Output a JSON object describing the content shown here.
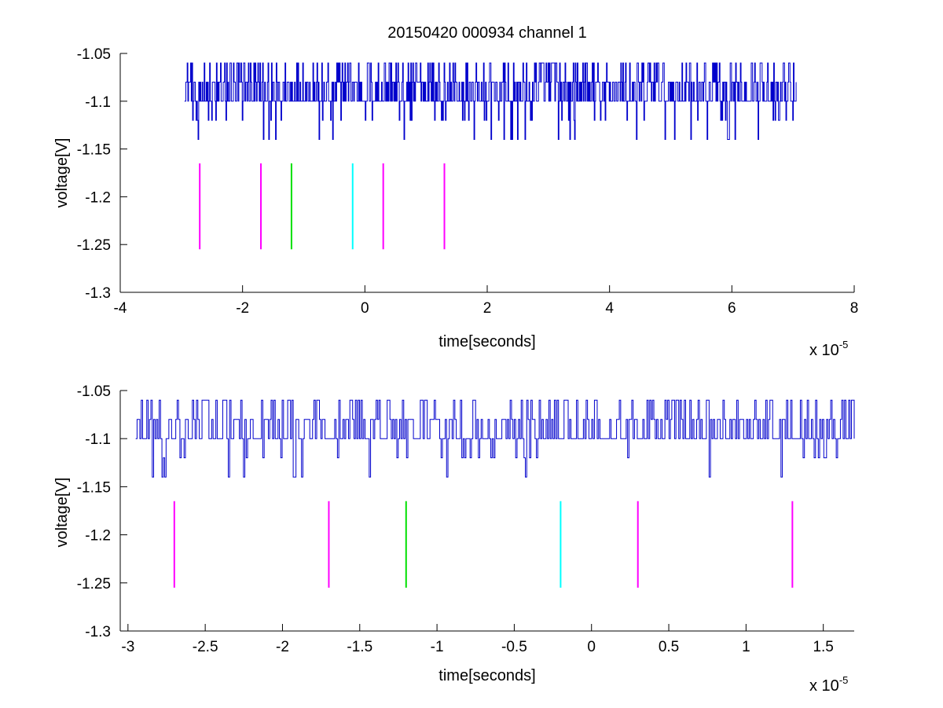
{
  "figure": {
    "title": "20150420 000934 channel 1",
    "colors": {
      "signal": "#0000cc",
      "magenta": "#ff00ff",
      "green": "#00e000",
      "cyan": "#00ffff",
      "axis": "#000000"
    }
  },
  "chart_data": [
    {
      "type": "line",
      "title": "20150420 000934 channel 1",
      "xlabel": "time[seconds]",
      "ylabel": "voltage[V]",
      "x_multiplier": {
        "base": "x 10",
        "exponent": "-5"
      },
      "xlim": [
        -4,
        8
      ],
      "ylim": [
        -1.3,
        -1.05
      ],
      "xticks": [
        -4,
        -2,
        0,
        2,
        4,
        6,
        8
      ],
      "xtick_labels": [
        "-4",
        "-2",
        "0",
        "2",
        "4",
        "6",
        "8"
      ],
      "yticks": [
        -1.05,
        -1.1,
        -1.15,
        -1.2,
        -1.25,
        -1.3
      ],
      "ytick_labels": [
        "-1.05",
        "-1.1",
        "-1.15",
        "-1.2",
        "-1.25",
        "-1.3"
      ],
      "grid": false,
      "series": [
        {
          "x_range": [
            -2.95,
            7.05
          ],
          "levels": [
            -1.06,
            -1.08,
            -1.1,
            -1.12,
            -1.14
          ],
          "baseline": -1.1,
          "color": "#0000cc"
        }
      ],
      "markers": [
        {
          "x": -2.7,
          "y_range": [
            -1.255,
            -1.165
          ],
          "color": "#ff00ff"
        },
        {
          "x": -1.7,
          "y_range": [
            -1.255,
            -1.165
          ],
          "color": "#ff00ff"
        },
        {
          "x": -1.2,
          "y_range": [
            -1.255,
            -1.165
          ],
          "color": "#00e000"
        },
        {
          "x": -0.2,
          "y_range": [
            -1.255,
            -1.165
          ],
          "color": "#00ffff"
        },
        {
          "x": 0.3,
          "y_range": [
            -1.255,
            -1.165
          ],
          "color": "#ff00ff"
        },
        {
          "x": 1.3,
          "y_range": [
            -1.255,
            -1.165
          ],
          "color": "#ff00ff"
        }
      ]
    },
    {
      "type": "line",
      "xlabel": "time[seconds]",
      "ylabel": "voltage[V]",
      "x_multiplier": {
        "base": "x 10",
        "exponent": "-5"
      },
      "xlim": [
        -3.05,
        1.7
      ],
      "ylim": [
        -1.3,
        -1.05
      ],
      "xticks": [
        -3,
        -2.5,
        -2,
        -1.5,
        -1,
        -0.5,
        0,
        0.5,
        1,
        1.5
      ],
      "xtick_labels": [
        "-3",
        "-2.5",
        "-2",
        "-1.5",
        "-1",
        "-0.5",
        "0",
        "0.5",
        "1",
        "1.5"
      ],
      "yticks": [
        -1.05,
        -1.1,
        -1.15,
        -1.2,
        -1.25,
        -1.3
      ],
      "ytick_labels": [
        "-1.05",
        "-1.1",
        "-1.15",
        "-1.2",
        "-1.25",
        "-1.3"
      ],
      "grid": false,
      "series": [
        {
          "x_range": [
            -2.95,
            1.7
          ],
          "levels": [
            -1.06,
            -1.08,
            -1.1,
            -1.12,
            -1.14
          ],
          "baseline": -1.1,
          "color": "#0000cc"
        }
      ],
      "markers": [
        {
          "x": -2.7,
          "y_range": [
            -1.255,
            -1.165
          ],
          "color": "#ff00ff"
        },
        {
          "x": -1.7,
          "y_range": [
            -1.255,
            -1.165
          ],
          "color": "#ff00ff"
        },
        {
          "x": -1.2,
          "y_range": [
            -1.255,
            -1.165
          ],
          "color": "#00e000"
        },
        {
          "x": -0.2,
          "y_range": [
            -1.255,
            -1.165
          ],
          "color": "#00ffff"
        },
        {
          "x": 0.3,
          "y_range": [
            -1.255,
            -1.165
          ],
          "color": "#ff00ff"
        },
        {
          "x": 1.3,
          "y_range": [
            -1.255,
            -1.165
          ],
          "color": "#ff00ff"
        }
      ]
    }
  ]
}
